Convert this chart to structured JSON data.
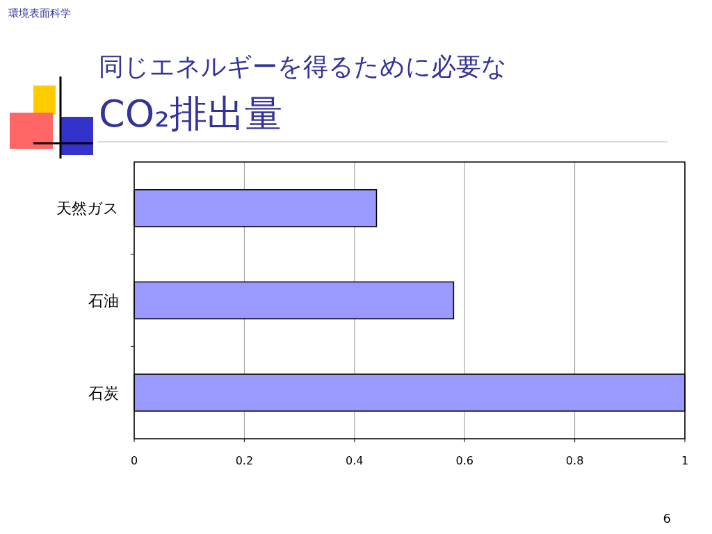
{
  "chart_data": {
    "type": "bar",
    "orientation": "horizontal",
    "title": "同じエネルギーを得るために必要な\nCO₂排出量",
    "categories": [
      "天然ガス",
      "石油",
      "石炭"
    ],
    "values": [
      0.44,
      0.58,
      1
    ],
    "color": "#9999ff",
    "xlim": [
      0,
      1
    ],
    "xticks": [
      0,
      0.2,
      0.4,
      0.6,
      0.8,
      1
    ],
    "grid": "x",
    "annotations": [
      "環境表面科学",
      "6"
    ]
  }
}
